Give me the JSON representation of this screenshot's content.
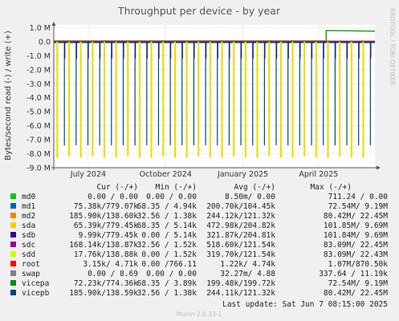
{
  "chart_data": {
    "type": "line",
    "title": "Throughput per device - by year",
    "ylabel": "Bytes/second read (-) / write (+)",
    "side_label": "RRDTOOL / TOBI OETIKER",
    "y_ticks": [
      "1.0 M",
      "0.0",
      "-1.0 M",
      "-2.0 M",
      "-3.0 M",
      "-4.0 M",
      "-5.0 M",
      "-6.0 M",
      "-7.0 M",
      "-8.0 M",
      "-9.0 M"
    ],
    "y_tick_values": [
      1,
      0,
      -1,
      -2,
      -3,
      -4,
      -5,
      -6,
      -7,
      -8,
      -9
    ],
    "ylim": [
      -9,
      1.2
    ],
    "x_range": [
      "2024-05-21",
      "2025-06-07"
    ],
    "x_ticks": [
      {
        "label": "July 2024",
        "date": "2024-07-01"
      },
      {
        "label": "October 2024",
        "date": "2024-10-01"
      },
      {
        "label": "January 2025",
        "date": "2025-01-01"
      },
      {
        "label": "April 2025",
        "date": "2025-04-01"
      }
    ],
    "grid": true,
    "spike_dates": [
      "2024-05-25",
      "2024-06-08",
      "2024-06-22",
      "2024-07-06",
      "2024-07-20",
      "2024-08-03",
      "2024-08-17",
      "2024-08-31",
      "2024-09-14",
      "2024-09-28",
      "2024-10-12",
      "2024-10-26",
      "2024-11-09",
      "2024-11-23",
      "2024-12-07",
      "2024-12-21",
      "2025-01-04",
      "2025-01-18",
      "2025-02-01",
      "2025-02-15",
      "2025-03-01",
      "2025-03-15",
      "2025-03-29",
      "2025-04-12",
      "2025-04-26",
      "2025-05-10",
      "2025-05-24"
    ],
    "spike_depths": [
      -8.3,
      -8.2,
      -8.3,
      -8.2,
      -8.3,
      -8.3,
      -8.2,
      -8.3,
      -8.3,
      -8.2,
      -8.3,
      -8.3,
      -8.2,
      -8.3,
      -8.3,
      -8.2,
      -8.3,
      -8.3,
      -8.2,
      -8.3,
      -8.3,
      -8.2,
      -8.3,
      -8.3,
      -8.2,
      -8.3,
      -8.3
    ],
    "write_step": {
      "date": "2025-04-10",
      "before": 0.05,
      "after": 0.8
    },
    "legend_headers": [
      "Cur (-/+)",
      "Min (-/+)",
      "Avg (-/+)",
      "Max (-/+)"
    ],
    "legend": [
      {
        "name": "md0",
        "color": "#00cc00",
        "cur": "0.00 /  0.00",
        "min": "0.00 /  0.00",
        "avg": "8.50m/  0.00",
        "max": "711.24 /  0.00"
      },
      {
        "name": "md1",
        "color": "#0066b3",
        "cur": "75.38k/779.07k",
        "min": "68.35 /  4.94k",
        "avg": "200.70k/104.45k",
        "max": "72.54M/  9.19M"
      },
      {
        "name": "md2",
        "color": "#ff8000",
        "cur": "185.90k/138.60k",
        "min": "32.56 /  1.38k",
        "avg": "244.12k/121.32k",
        "max": "80.42M/ 22.45M"
      },
      {
        "name": "sda",
        "color": "#ffcc00",
        "cur": "65.39k/779.45k",
        "min": "68.35 /  5.14k",
        "avg": "472.98k/204.82k",
        "max": "101.85M/  9.69M"
      },
      {
        "name": "sdb",
        "color": "#330099",
        "cur": "9.99k/779.45k",
        "min": "0.00 /  5.14k",
        "avg": "321.87k/204.81k",
        "max": "101.84M/  9.69M"
      },
      {
        "name": "sdc",
        "color": "#990099",
        "cur": "168.14k/138.87k",
        "min": "32.56 /  1.52k",
        "avg": "518.60k/121.54k",
        "max": "83.09M/ 22.45M"
      },
      {
        "name": "sdd",
        "color": "#ccff00",
        "cur": "17.76k/138.88k",
        "min": "0.00 /  1.52k",
        "avg": "319.70k/121.54k",
        "max": "83.09M/ 22.43M"
      },
      {
        "name": "root",
        "color": "#ff0000",
        "cur": "3.15k/  4.71k",
        "min": "0.00 /766.11",
        "avg": "1.22k/  4.74k",
        "max": "1.07M/870.50k"
      },
      {
        "name": "swap",
        "color": "#808080",
        "cur": "0.00 /  8.69",
        "min": "0.00 /  0.00",
        "avg": "32.27m/  4.88",
        "max": "337.64 / 11.19k"
      },
      {
        "name": "vicepa",
        "color": "#008f00",
        "cur": "72.23k/774.36k",
        "min": "68.35 /  3.89k",
        "avg": "199.48k/199.72k",
        "max": "72.54M/  9.19M"
      },
      {
        "name": "vicepb",
        "color": "#00487d",
        "cur": "185.90k/138.59k",
        "min": "32.56 /  1.38k",
        "avg": "244.11k/121.32k",
        "max": "80.42M/ 22.45M"
      }
    ],
    "last_update": "Last update:  Sat Jun  7 08:15:00 2025",
    "footer": "Munin 2.0.33-1"
  }
}
